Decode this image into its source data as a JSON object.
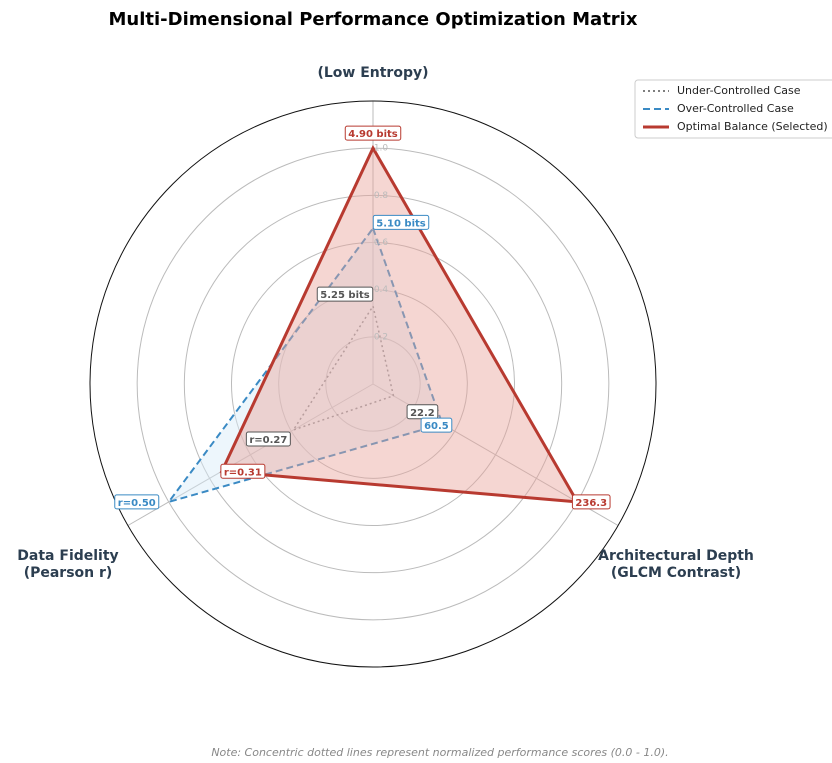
{
  "chart_data": {
    "type": "radar",
    "title": "Multi-Dimensional Performance Optimization Matrix",
    "categories": [
      [
        "(Low Entropy)"
      ],
      [
        "Architectural Depth",
        "(GLCM Contrast)"
      ],
      [
        "Data Fidelity",
        "(Pearson r)"
      ]
    ],
    "ylim": [
      0,
      1.2
    ],
    "yticks": [
      {
        "value": 0.2,
        "label": "0.2"
      },
      {
        "value": 0.4,
        "label": "0.4"
      },
      {
        "value": 0.6,
        "label": "0.6"
      },
      {
        "value": 0.8,
        "label": "0.8"
      },
      {
        "value": 1,
        "label": "1.0"
      }
    ],
    "series": [
      {
        "name": "Under-Controlled Case",
        "color": "#555555",
        "style": "dotted",
        "values": [
          0.33,
          0.1,
          0.39
        ],
        "point_labels": [
          "5.25 bits",
          "22.2",
          "r=0.27"
        ]
      },
      {
        "name": "Over-Controlled Case",
        "color": "#3a8ac4",
        "style": "dashed",
        "fill": "#d6eaf8",
        "values": [
          0.66,
          0.34,
          1.0
        ],
        "point_labels": [
          "5.10 bits",
          "60.5",
          "r=0.50"
        ]
      },
      {
        "name": "Optimal Balance (Selected)",
        "color": "#b83a30",
        "style": "solid",
        "fill": "#e8a39c",
        "values": [
          1.0,
          1.0,
          0.74
        ],
        "point_labels": [
          "4.90 bits",
          "236.3",
          "r=0.31"
        ]
      }
    ],
    "legend": "upper right",
    "note": "Note: Concentric dotted lines represent normalized performance scores (0.0 - 1.0)."
  }
}
